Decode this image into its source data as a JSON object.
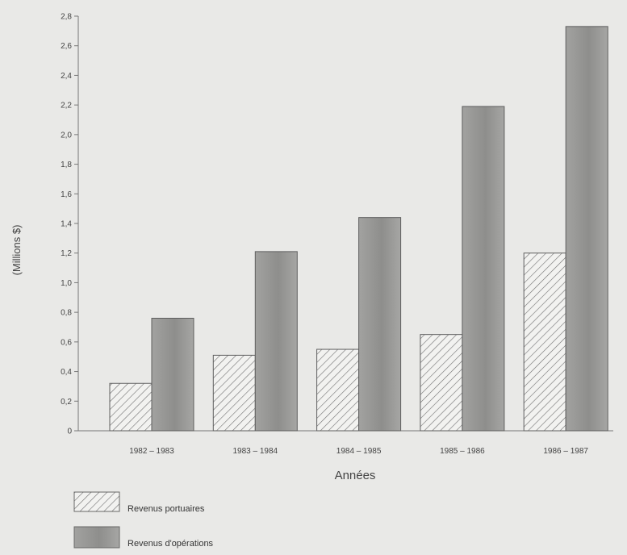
{
  "chart_data": {
    "type": "bar",
    "categories": [
      "1982 – 1983",
      "1983 – 1984",
      "1984 – 1985",
      "1985 – 1986",
      "1986 – 1987"
    ],
    "series": [
      {
        "name": "Revenus portuaires",
        "values": [
          0.32,
          0.51,
          0.55,
          0.65,
          1.2
        ],
        "pattern": "hatch",
        "color": "#f2f2f0"
      },
      {
        "name": "Revenus d'opérations",
        "values": [
          0.76,
          1.21,
          1.44,
          2.19,
          2.73
        ],
        "pattern": "solid",
        "color": "#9a9a98"
      }
    ],
    "xlabel": "Années",
    "ylabel": "(Millions $)",
    "ylim": [
      0,
      2.8
    ],
    "yticks": [
      "0",
      "0,2",
      "0,4",
      "0,6",
      "0,8",
      "1,0",
      "1,2",
      "1,4",
      "1,6",
      "1,8",
      "2,0",
      "2,2",
      "2,4",
      "2,6",
      "2,8"
    ],
    "grid": false,
    "legend_position": "bottom-left"
  }
}
